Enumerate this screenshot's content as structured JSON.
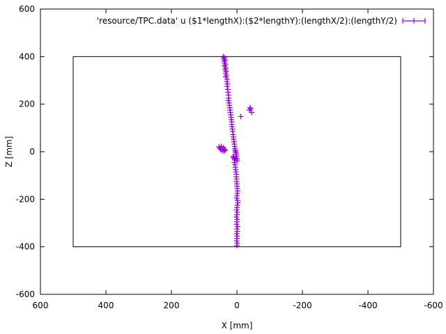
{
  "chart_data": {
    "type": "scatter",
    "xlabel": "X [mm]",
    "ylabel": "Z [mm]",
    "xlim": [
      600,
      -600
    ],
    "ylim": [
      -600,
      600
    ],
    "x_reversed": true,
    "x_ticks": [
      600,
      400,
      200,
      0,
      -200,
      -400,
      -600
    ],
    "x_tick_labels": [
      "600",
      "400",
      "200",
      "0",
      "-200",
      "-400",
      "-600"
    ],
    "y_ticks": [
      -600,
      -400,
      -200,
      0,
      200,
      400,
      600
    ],
    "y_tick_labels": [
      "-600",
      "-400",
      "-200",
      "0",
      "200",
      "400",
      "600"
    ],
    "grid": false,
    "legend_position": "top-right",
    "point_color": "#9400d3",
    "detector_box": {
      "x": [
        -500,
        500
      ],
      "z": [
        -400,
        400
      ]
    },
    "series": [
      {
        "name": "'resource/TPC.data' u ($1*lengthX):($2*lengthY):(lengthX/2):(lengthY/2)",
        "x": [
          42,
          38,
          40,
          36,
          39,
          37,
          35,
          38,
          34,
          36,
          33,
          35,
          32,
          34,
          30,
          31,
          29,
          30,
          28,
          27,
          26,
          25,
          26,
          24,
          23,
          22,
          21,
          20,
          19,
          18,
          17,
          16,
          16,
          15,
          14,
          13,
          12,
          11,
          10,
          9,
          8,
          7,
          6,
          5,
          4,
          3,
          2,
          1,
          0,
          -1,
          55,
          52,
          50,
          48,
          45,
          42,
          40,
          38,
          36,
          12,
          10,
          8,
          6,
          4,
          -40,
          -42,
          -38,
          -45,
          -12,
          8,
          6,
          5,
          4,
          3,
          2,
          2,
          1,
          1,
          0,
          0,
          -1,
          -2,
          -1,
          0,
          1,
          -2,
          -3,
          -1,
          0,
          1,
          -1,
          0,
          2,
          -1,
          0,
          1,
          -2,
          0,
          -1,
          1,
          -1,
          0,
          1,
          -1,
          0
        ],
        "y": [
          400,
          395,
          390,
          385,
          380,
          372,
          365,
          360,
          352,
          345,
          338,
          330,
          322,
          315,
          305,
          295,
          285,
          275,
          262,
          250,
          238,
          225,
          215,
          205,
          195,
          185,
          175,
          165,
          155,
          145,
          135,
          125,
          115,
          105,
          95,
          85,
          72,
          62,
          52,
          42,
          32,
          22,
          12,
          5,
          0,
          -5,
          -12,
          -20,
          -30,
          -38,
          20,
          15,
          10,
          22,
          5,
          18,
          2,
          10,
          6,
          -20,
          -25,
          -30,
          -35,
          -28,
          185,
          180,
          175,
          165,
          148,
          -45,
          -55,
          -65,
          -75,
          -85,
          -95,
          -105,
          -115,
          -125,
          -135,
          -145,
          -155,
          -165,
          -175,
          -185,
          -195,
          -205,
          -215,
          -225,
          -235,
          -245,
          -255,
          -265,
          -275,
          -285,
          -295,
          -305,
          -315,
          -325,
          -335,
          -345,
          -355,
          -365,
          -375,
          -385,
          -395
        ]
      }
    ]
  }
}
